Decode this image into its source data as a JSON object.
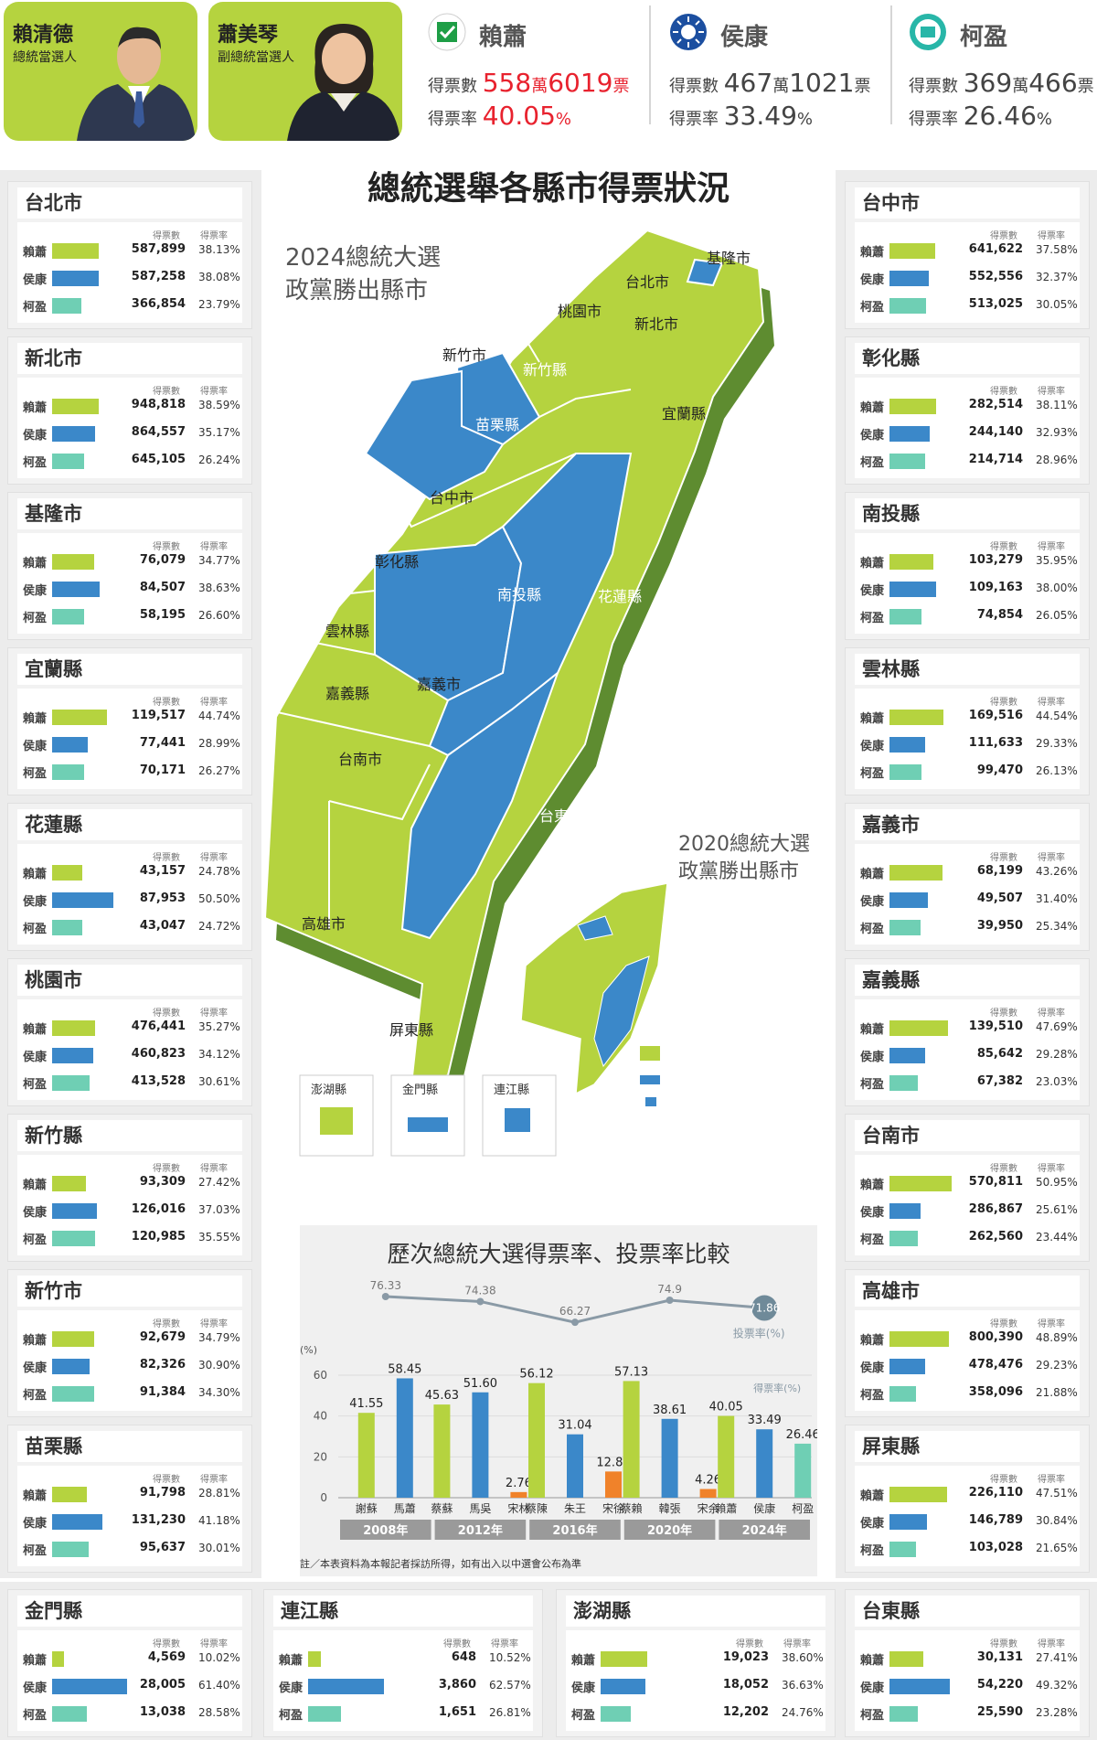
{
  "header": {
    "lai": {
      "name": "賴清德",
      "role": "總統當選人"
    },
    "hsiao": {
      "name": "蕭美琴",
      "role": "副總統當選人"
    }
  },
  "summary": [
    {
      "name": "賴蕭",
      "votes_label": "得票數",
      "votes_big1": "558",
      "wan": "萬",
      "votes_big2": "6019",
      "unit": "票",
      "rate_label": "得票率",
      "rate": "40.05",
      "pct": "%",
      "color": "#e8222e",
      "logo": "dpp-logo-icon"
    },
    {
      "name": "侯康",
      "votes_label": "得票數",
      "votes_big1": "467",
      "wan": "萬",
      "votes_big2": "1021",
      "unit": "票",
      "rate_label": "得票率",
      "rate": "33.49",
      "pct": "%",
      "color": "#333333",
      "logo": "kmt-logo-icon"
    },
    {
      "name": "柯盈",
      "votes_label": "得票數",
      "votes_big1": "369",
      "wan": "萬",
      "votes_big2": "466",
      "unit": "票",
      "rate_label": "得票率",
      "rate": "26.46",
      "pct": "%",
      "color": "#333333",
      "logo": "tpp-logo-icon"
    }
  ],
  "panel_headers": {
    "votes": "得票數",
    "rate": "得票率"
  },
  "candidates": [
    "賴蕭",
    "侯康",
    "柯盈"
  ],
  "colors": {
    "dpp": "#b5d33f",
    "kmt": "#3b88c9",
    "tpp": "#6fcfb4",
    "orange": "#f0822a"
  },
  "left_panels": [
    {
      "title": "台北市",
      "votes": [
        "587,899",
        "587,258",
        "366,854"
      ],
      "rates": [
        "38.13%",
        "38.08%",
        "23.79%"
      ]
    },
    {
      "title": "新北市",
      "votes": [
        "948,818",
        "864,557",
        "645,105"
      ],
      "rates": [
        "38.59%",
        "35.17%",
        "26.24%"
      ]
    },
    {
      "title": "基隆市",
      "votes": [
        "76,079",
        "84,507",
        "58,195"
      ],
      "rates": [
        "34.77%",
        "38.63%",
        "26.60%"
      ]
    },
    {
      "title": "宜蘭縣",
      "votes": [
        "119,517",
        "77,441",
        "70,171"
      ],
      "rates": [
        "44.74%",
        "28.99%",
        "26.27%"
      ]
    },
    {
      "title": "花蓮縣",
      "votes": [
        "43,157",
        "87,953",
        "43,047"
      ],
      "rates": [
        "24.78%",
        "50.50%",
        "24.72%"
      ]
    },
    {
      "title": "桃園市",
      "votes": [
        "476,441",
        "460,823",
        "413,528"
      ],
      "rates": [
        "35.27%",
        "34.12%",
        "30.61%"
      ]
    },
    {
      "title": "新竹縣",
      "votes": [
        "93,309",
        "126,016",
        "120,985"
      ],
      "rates": [
        "27.42%",
        "37.03%",
        "35.55%"
      ]
    },
    {
      "title": "新竹市",
      "votes": [
        "92,679",
        "82,326",
        "91,384"
      ],
      "rates": [
        "34.79%",
        "30.90%",
        "34.30%"
      ]
    },
    {
      "title": "苗栗縣",
      "votes": [
        "91,798",
        "131,230",
        "95,637"
      ],
      "rates": [
        "28.81%",
        "41.18%",
        "30.01%"
      ]
    }
  ],
  "right_panels": [
    {
      "title": "台中市",
      "votes": [
        "641,622",
        "552,556",
        "513,025"
      ],
      "rates": [
        "37.58%",
        "32.37%",
        "30.05%"
      ]
    },
    {
      "title": "彰化縣",
      "votes": [
        "282,514",
        "244,140",
        "214,714"
      ],
      "rates": [
        "38.11%",
        "32.93%",
        "28.96%"
      ]
    },
    {
      "title": "南投縣",
      "votes": [
        "103,279",
        "109,163",
        "74,854"
      ],
      "rates": [
        "35.95%",
        "38.00%",
        "26.05%"
      ]
    },
    {
      "title": "雲林縣",
      "votes": [
        "169,516",
        "111,633",
        "99,470"
      ],
      "rates": [
        "44.54%",
        "29.33%",
        "26.13%"
      ]
    },
    {
      "title": "嘉義市",
      "votes": [
        "68,199",
        "49,507",
        "39,950"
      ],
      "rates": [
        "43.26%",
        "31.40%",
        "25.34%"
      ]
    },
    {
      "title": "嘉義縣",
      "votes": [
        "139,510",
        "85,642",
        "67,382"
      ],
      "rates": [
        "47.69%",
        "29.28%",
        "23.03%"
      ]
    },
    {
      "title": "台南市",
      "votes": [
        "570,811",
        "286,867",
        "262,560"
      ],
      "rates": [
        "50.95%",
        "25.61%",
        "23.44%"
      ]
    },
    {
      "title": "高雄市",
      "votes": [
        "800,390",
        "478,476",
        "358,096"
      ],
      "rates": [
        "48.89%",
        "29.23%",
        "21.88%"
      ]
    },
    {
      "title": "屏東縣",
      "votes": [
        "226,110",
        "146,789",
        "103,028"
      ],
      "rates": [
        "47.51%",
        "30.84%",
        "21.65%"
      ]
    }
  ],
  "bottom_panels": [
    {
      "title": "金門縣",
      "votes": [
        "4,569",
        "28,005",
        "13,038"
      ],
      "rates": [
        "10.02%",
        "61.40%",
        "28.58%"
      ]
    },
    {
      "title": "連江縣",
      "votes": [
        "648",
        "3,860",
        "1,651"
      ],
      "rates": [
        "10.52%",
        "62.57%",
        "26.81%"
      ]
    },
    {
      "title": "澎湖縣",
      "votes": [
        "19,023",
        "18,052",
        "12,202"
      ],
      "rates": [
        "38.60%",
        "36.63%",
        "24.76%"
      ]
    },
    {
      "title": "台東縣",
      "votes": [
        "30,131",
        "54,220",
        "25,590"
      ],
      "rates": [
        "27.41%",
        "49.32%",
        "23.28%"
      ]
    }
  ],
  "map": {
    "title": "總統選舉各縣市得票狀況",
    "subtitle_2024_line1": "2024總統大選",
    "subtitle_2024_line2": "政黨勝出縣市",
    "subtitle_2020_line1": "2020總統大選",
    "subtitle_2020_line2": "政黨勝出縣市",
    "labels": {
      "keelung": "基隆市",
      "taipei": "台北市",
      "newtaipei": "新北市",
      "taoyuan": "桃園市",
      "hsinchucity": "新竹市",
      "hsinchucounty": "新竹縣",
      "yilan": "宜蘭縣",
      "miaoli": "苗栗縣",
      "taichung": "台中市",
      "changhua": "彰化縣",
      "nantou": "南投縣",
      "hualien": "花蓮縣",
      "yunlin": "雲林縣",
      "chiayicity": "嘉義市",
      "chiayicounty": "嘉義縣",
      "tainan": "台南市",
      "taitung": "台東縣",
      "kaohsiung": "高雄市",
      "pingtung": "屏東縣"
    },
    "islands": [
      "澎湖縣",
      "金門縣",
      "連江縣"
    ]
  },
  "chart_data": {
    "type": "bar",
    "title": "歷次總統大選得票率、投票率比較",
    "ylabel": "(%)",
    "ylim": [
      0,
      60
    ],
    "yticks": [
      "0",
      "20",
      "40",
      "60"
    ],
    "years": [
      "2008年",
      "2012年",
      "2016年",
      "2020年",
      "2024年"
    ],
    "groups": [
      {
        "year": "2008年",
        "bars": [
          {
            "name": "謝蘇",
            "value": 41.55,
            "party": "dpp"
          },
          {
            "name": "馬蕭",
            "value": 58.45,
            "party": "kmt"
          }
        ]
      },
      {
        "year": "2012年",
        "bars": [
          {
            "name": "蔡蘇",
            "value": 45.63,
            "party": "dpp"
          },
          {
            "name": "馬吳",
            "value": 51.6,
            "party": "kmt"
          },
          {
            "name": "宋林",
            "value": 2.76,
            "party": "orange"
          }
        ]
      },
      {
        "year": "2016年",
        "bars": [
          {
            "name": "蔡陳",
            "value": 56.12,
            "party": "dpp"
          },
          {
            "name": "朱王",
            "value": 31.04,
            "party": "kmt"
          },
          {
            "name": "宋徐",
            "value": 12.83,
            "party": "orange"
          }
        ]
      },
      {
        "year": "2020年",
        "bars": [
          {
            "name": "蔡賴",
            "value": 57.13,
            "party": "dpp"
          },
          {
            "name": "韓張",
            "value": 38.61,
            "party": "kmt"
          },
          {
            "name": "宋余",
            "value": 4.26,
            "party": "orange"
          }
        ]
      },
      {
        "year": "2024年",
        "bars": [
          {
            "name": "賴蕭",
            "value": 40.05,
            "party": "dpp"
          },
          {
            "name": "侯康",
            "value": 33.49,
            "party": "kmt"
          },
          {
            "name": "柯盈",
            "value": 26.46,
            "party": "tpp"
          }
        ]
      }
    ],
    "turnout": {
      "name": "投票率",
      "unit": "(%)",
      "values": [
        76.33,
        74.38,
        66.27,
        74.9,
        71.86
      ]
    },
    "vote_rate_label": "得票率",
    "vote_rate_unit": "(%)",
    "note": "註／本表資料為本報記者採訪所得，如有出入以中選會公布為準"
  }
}
